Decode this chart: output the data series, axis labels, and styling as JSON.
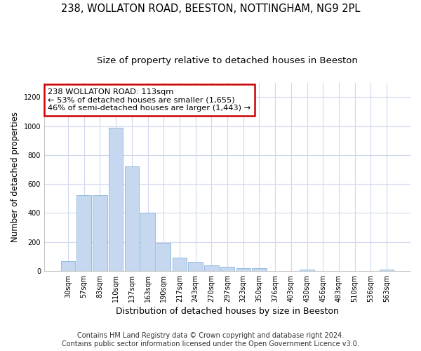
{
  "title1": "238, WOLLATON ROAD, BEESTON, NOTTINGHAM, NG9 2PL",
  "title2": "Size of property relative to detached houses in Beeston",
  "xlabel": "Distribution of detached houses by size in Beeston",
  "ylabel": "Number of detached properties",
  "footnote1": "Contains HM Land Registry data © Crown copyright and database right 2024.",
  "footnote2": "Contains public sector information licensed under the Open Government Licence v3.0.",
  "bar_color": "#c5d8f0",
  "bar_edge_color": "#7aadd4",
  "annotation_box_text": "238 WOLLATON ROAD: 113sqm\n← 53% of detached houses are smaller (1,655)\n46% of semi-detached houses are larger (1,443) →",
  "annotation_box_color": "#ffffff",
  "annotation_box_edge_color": "#cc0000",
  "subject_bar_index": 3,
  "bin_labels": [
    "30sqm",
    "57sqm",
    "83sqm",
    "110sqm",
    "137sqm",
    "163sqm",
    "190sqm",
    "217sqm",
    "243sqm",
    "270sqm",
    "297sqm",
    "323sqm",
    "350sqm",
    "376sqm",
    "403sqm",
    "430sqm",
    "456sqm",
    "483sqm",
    "510sqm",
    "536sqm",
    "563sqm"
  ],
  "values": [
    67,
    525,
    525,
    990,
    720,
    403,
    193,
    90,
    60,
    37,
    30,
    20,
    20,
    0,
    0,
    10,
    0,
    0,
    0,
    0,
    10
  ],
  "ylim": [
    0,
    1300
  ],
  "yticks": [
    0,
    200,
    400,
    600,
    800,
    1000,
    1200
  ],
  "background_color": "#ffffff",
  "grid_color": "#d0d8ee",
  "title1_fontsize": 10.5,
  "title2_fontsize": 9.5,
  "xlabel_fontsize": 9,
  "ylabel_fontsize": 8.5,
  "tick_fontsize": 7,
  "footnote_fontsize": 7
}
